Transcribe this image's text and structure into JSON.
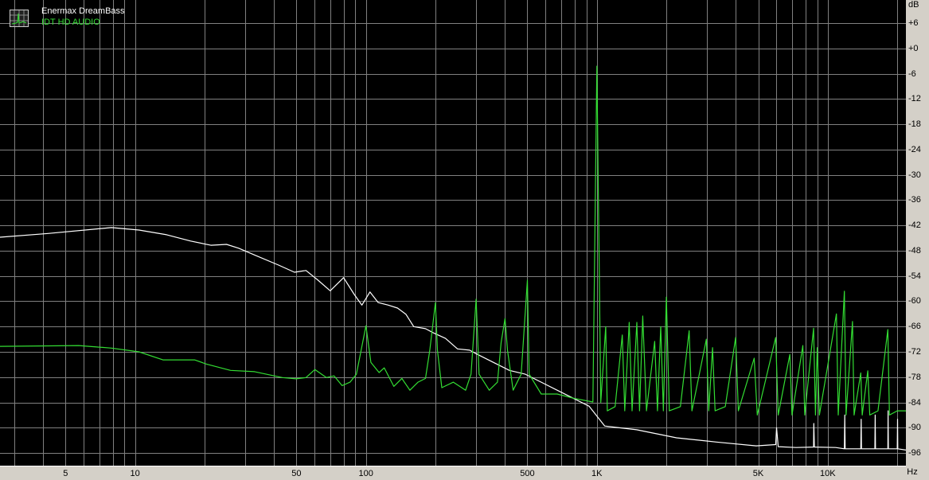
{
  "chart_data": {
    "type": "line",
    "title": "",
    "xlabel": "",
    "ylabel": "",
    "x_unit_label": "Hz",
    "y_unit_label": "dB",
    "x_scale": "log",
    "xlim": [
      2.6,
      21800
    ],
    "ylim": [
      -99.2,
      11.5
    ],
    "grid": true,
    "background": "#000000",
    "grid_color": "#808080",
    "legend_position": "top-left",
    "y_ticks": [
      "+6",
      "+0",
      "-6",
      "-12",
      "-18",
      "-24",
      "-30",
      "-36",
      "-42",
      "-48",
      "-54",
      "-60",
      "-66",
      "-72",
      "-78",
      "-84",
      "-90",
      "-96"
    ],
    "y_tick_values": [
      6,
      0,
      -6,
      -12,
      -18,
      -24,
      -30,
      -36,
      -42,
      -48,
      -54,
      -60,
      -66,
      -72,
      -78,
      -84,
      -90,
      -96
    ],
    "x_ticks": [
      "5",
      "10",
      "50",
      "100",
      "500",
      "1K",
      "5K",
      "10K"
    ],
    "x_tick_values": [
      5,
      10,
      50,
      100,
      500,
      1000,
      5000,
      10000
    ],
    "series": [
      {
        "name": "Enermax DreamBass",
        "color": "#ffffff",
        "points": [
          [
            2.6,
            -44.8
          ],
          [
            4.2,
            -43.9
          ],
          [
            7.9,
            -42.5
          ],
          [
            10.4,
            -43.1
          ],
          [
            13.7,
            -44.2
          ],
          [
            17.4,
            -45.7
          ],
          [
            21.3,
            -46.7
          ],
          [
            24.9,
            -46.5
          ],
          [
            28.1,
            -47.4
          ],
          [
            32.9,
            -49.0
          ],
          [
            41.8,
            -51.4
          ],
          [
            49,
            -53.1
          ],
          [
            55,
            -52.7
          ],
          [
            62,
            -55.0
          ],
          [
            70,
            -57.5
          ],
          [
            80,
            -54.4
          ],
          [
            89,
            -58.4
          ],
          [
            96,
            -60.9
          ],
          [
            104,
            -57.8
          ],
          [
            113,
            -60.3
          ],
          [
            125,
            -60.9
          ],
          [
            137,
            -61.6
          ],
          [
            149,
            -63.1
          ],
          [
            161,
            -66.0
          ],
          [
            181,
            -66.5
          ],
          [
            196,
            -67.5
          ],
          [
            221,
            -68.8
          ],
          [
            249,
            -71.3
          ],
          [
            281,
            -71.6
          ],
          [
            304,
            -72.6
          ],
          [
            356,
            -74.5
          ],
          [
            418,
            -76.4
          ],
          [
            490,
            -77.3
          ],
          [
            574,
            -79.2
          ],
          [
            673,
            -81.1
          ],
          [
            789,
            -83.0
          ],
          [
            925,
            -84.9
          ],
          [
            1082,
            -89.6
          ],
          [
            1487,
            -90.5
          ],
          [
            2213,
            -92.4
          ],
          [
            3289,
            -93.4
          ],
          [
            4898,
            -94.3
          ],
          [
            5950,
            -94
          ],
          [
            6000,
            -90
          ],
          [
            6100,
            -94.5
          ],
          [
            7278,
            -94.7
          ],
          [
            8680,
            -94.6
          ],
          [
            8700,
            -89
          ],
          [
            8750,
            -94.6
          ],
          [
            10820,
            -94.7
          ],
          [
            11800,
            -95
          ],
          [
            11850,
            -87
          ],
          [
            11900,
            -95
          ],
          [
            13900,
            -95
          ],
          [
            13950,
            -88
          ],
          [
            14000,
            -95
          ],
          [
            16000,
            -95
          ],
          [
            16050,
            -87
          ],
          [
            16100,
            -95
          ],
          [
            18200,
            -95
          ],
          [
            18250,
            -86
          ],
          [
            18300,
            -95
          ],
          [
            20000,
            -95
          ],
          [
            20050,
            -88
          ],
          [
            20100,
            -95
          ],
          [
            21800,
            -95.3
          ]
        ]
      },
      {
        "name": "IDT HD AUDIO",
        "color": "#33dd33",
        "points": [
          [
            2.6,
            -70.7
          ],
          [
            5.7,
            -70.5
          ],
          [
            7.9,
            -71.1
          ],
          [
            10.4,
            -72.0
          ],
          [
            13.2,
            -73.9
          ],
          [
            18.1,
            -73.9
          ],
          [
            20.4,
            -74.9
          ],
          [
            25.9,
            -76.4
          ],
          [
            32.9,
            -76.7
          ],
          [
            43.4,
            -78.1
          ],
          [
            49.8,
            -78.4
          ],
          [
            55,
            -78.1
          ],
          [
            60.1,
            -76.2
          ],
          [
            67.3,
            -78.1
          ],
          [
            72.8,
            -77.7
          ],
          [
            78.8,
            -80.0
          ],
          [
            85.3,
            -79.2
          ],
          [
            90.9,
            -77.3
          ],
          [
            100,
            -65.8
          ],
          [
            105,
            -74.5
          ],
          [
            114,
            -76.9
          ],
          [
            120,
            -75.8
          ],
          [
            132,
            -80.2
          ],
          [
            143,
            -78.3
          ],
          [
            155,
            -81.1
          ],
          [
            168,
            -79.2
          ],
          [
            181,
            -78.3
          ],
          [
            189,
            -71.6
          ],
          [
            200,
            -60.3
          ],
          [
            204,
            -71.6
          ],
          [
            213,
            -80.5
          ],
          [
            239,
            -79.2
          ],
          [
            270,
            -81.1
          ],
          [
            285,
            -77.3
          ],
          [
            300,
            -59.5
          ],
          [
            309,
            -77.3
          ],
          [
            342,
            -81.1
          ],
          [
            371,
            -79.2
          ],
          [
            385,
            -69.8
          ],
          [
            400,
            -64.1
          ],
          [
            410,
            -71.6
          ],
          [
            434,
            -81.1
          ],
          [
            470,
            -77.3
          ],
          [
            500,
            -55.0
          ],
          [
            509,
            -77.3
          ],
          [
            574,
            -82.0
          ],
          [
            673,
            -82.0
          ],
          [
            789,
            -83.0
          ],
          [
            961,
            -83.9
          ],
          [
            1000,
            -4.2
          ],
          [
            1040,
            -84
          ],
          [
            1092,
            -66
          ],
          [
            1110,
            -86
          ],
          [
            1200,
            -85
          ],
          [
            1288,
            -68
          ],
          [
            1320,
            -86
          ],
          [
            1380,
            -65
          ],
          [
            1420,
            -86
          ],
          [
            1490,
            -65
          ],
          [
            1530,
            -86
          ],
          [
            1580,
            -63.5
          ],
          [
            1640,
            -86
          ],
          [
            1780,
            -69.5
          ],
          [
            1830,
            -86
          ],
          [
            1890,
            -66
          ],
          [
            1940,
            -86
          ],
          [
            2000,
            -59
          ],
          [
            2060,
            -86
          ],
          [
            2300,
            -85
          ],
          [
            2510,
            -67
          ],
          [
            2580,
            -86
          ],
          [
            2980,
            -69
          ],
          [
            3050,
            -86
          ],
          [
            3170,
            -71
          ],
          [
            3250,
            -86
          ],
          [
            3600,
            -85
          ],
          [
            3990,
            -68.6
          ],
          [
            4100,
            -86
          ],
          [
            4800,
            -73.5
          ],
          [
            4950,
            -87
          ],
          [
            5950,
            -68.6
          ],
          [
            6100,
            -87
          ],
          [
            6850,
            -72.6
          ],
          [
            7000,
            -87
          ],
          [
            7800,
            -70.5
          ],
          [
            7950,
            -87
          ],
          [
            8680,
            -66.4
          ],
          [
            8850,
            -87
          ],
          [
            9000,
            -71
          ],
          [
            9200,
            -87
          ],
          [
            10900,
            -63
          ],
          [
            11100,
            -87
          ],
          [
            11800,
            -57.6
          ],
          [
            12000,
            -87
          ],
          [
            12800,
            -64.8
          ],
          [
            13000,
            -87
          ],
          [
            13900,
            -77
          ],
          [
            14100,
            -87
          ],
          [
            14900,
            -76.5
          ],
          [
            15200,
            -87
          ],
          [
            16500,
            -86
          ],
          [
            18200,
            -66.7
          ],
          [
            18500,
            -87
          ],
          [
            20000,
            -86
          ],
          [
            21800,
            -86
          ]
        ]
      }
    ]
  },
  "legend": {
    "items": [
      "Enermax DreamBass",
      "IDT HD AUDIO"
    ],
    "icon": "spectrum-icon"
  }
}
